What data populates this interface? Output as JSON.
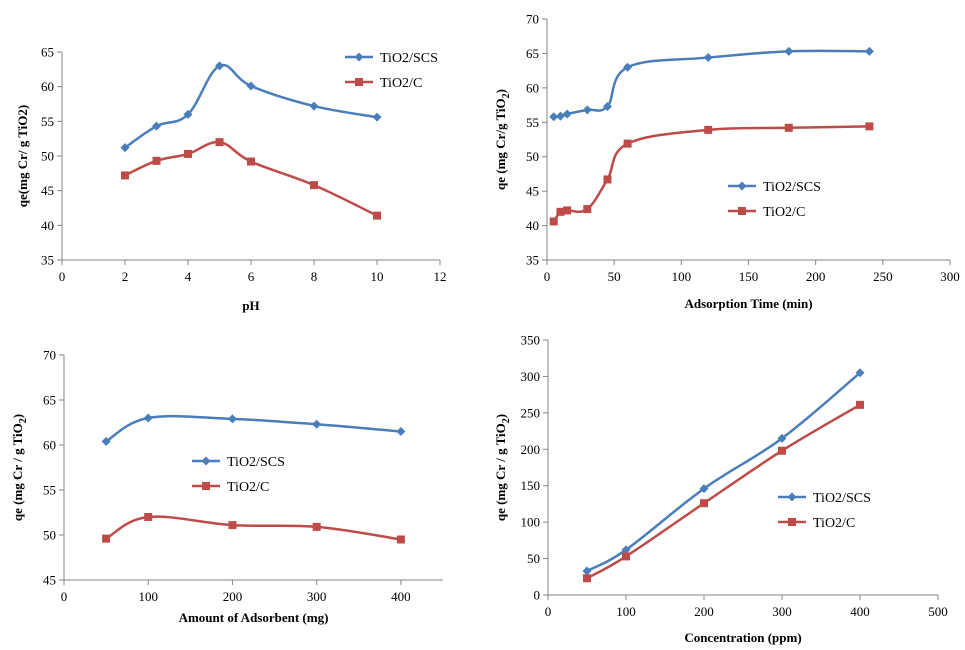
{
  "colors": {
    "TiO2/SCS": "#4a7ebb",
    "TiO2/C": "#be4b48",
    "axis": "#868686"
  },
  "chart_data": [
    {
      "id": "ph",
      "type": "line",
      "xlabel": "pH",
      "ylabel": "qe(mg Cr/ g TiO2)",
      "xlim": [
        0,
        12
      ],
      "ylim": [
        35,
        65
      ],
      "xticks": [
        0,
        2,
        4,
        6,
        8,
        10,
        12
      ],
      "yticks": [
        35,
        40,
        45,
        50,
        55,
        60,
        65
      ],
      "grid": false,
      "legend_position": "top-right",
      "series": [
        {
          "name": "TiO2/SCS",
          "marker": "diamond",
          "x": [
            2,
            3,
            4,
            5,
            6,
            8,
            10
          ],
          "y": [
            51.2,
            54.3,
            56.0,
            63.0,
            60.1,
            57.2,
            55.6
          ]
        },
        {
          "name": "TiO2/C",
          "marker": "square",
          "x": [
            2,
            3,
            4,
            5,
            6,
            8,
            10
          ],
          "y": [
            47.2,
            49.3,
            50.3,
            52.0,
            49.2,
            45.8,
            41.4
          ]
        }
      ]
    },
    {
      "id": "time",
      "type": "line",
      "xlabel": "Adsorption Time (min)",
      "ylabel": "qe (mg Cr/g TiO",
      "ylabel_sub": "2",
      "ylabel_end": ")",
      "xlim": [
        0,
        300
      ],
      "ylim": [
        35,
        70
      ],
      "xticks": [
        0,
        50,
        100,
        150,
        200,
        250,
        300
      ],
      "yticks": [
        35,
        40,
        45,
        50,
        55,
        60,
        65,
        70
      ],
      "grid": false,
      "legend_position": "middle-right",
      "series": [
        {
          "name": "TiO2/SCS",
          "marker": "diamond",
          "x": [
            5,
            10,
            15,
            30,
            45,
            60,
            120,
            180,
            240
          ],
          "y": [
            55.8,
            55.9,
            56.2,
            56.8,
            57.3,
            63.0,
            64.4,
            65.3,
            65.3
          ]
        },
        {
          "name": "TiO2/C",
          "marker": "square",
          "x": [
            5,
            10,
            15,
            30,
            45,
            60,
            120,
            180,
            240
          ],
          "y": [
            40.6,
            42.0,
            42.2,
            42.4,
            46.7,
            51.9,
            53.9,
            54.2,
            54.4
          ]
        }
      ]
    },
    {
      "id": "amount",
      "type": "line",
      "xlabel": "Amount of Adsorbent (mg)",
      "ylabel": "qe (mg Cr / g TiO",
      "ylabel_sub": "2",
      "ylabel_end": ")",
      "xlim": [
        0,
        450
      ],
      "ylim": [
        45,
        70
      ],
      "xticks": [
        0,
        100,
        200,
        300,
        400
      ],
      "yticks": [
        45,
        50,
        55,
        60,
        65,
        70
      ],
      "grid": false,
      "legend_position": "center",
      "series": [
        {
          "name": "TiO2/SCS",
          "marker": "diamond",
          "x": [
            50,
            100,
            200,
            300,
            400
          ],
          "y": [
            60.4,
            63.0,
            62.9,
            62.3,
            61.5
          ]
        },
        {
          "name": "TiO2/C",
          "marker": "square",
          "x": [
            50,
            100,
            200,
            300,
            400
          ],
          "y": [
            49.6,
            52.0,
            51.1,
            50.9,
            49.5
          ]
        }
      ]
    },
    {
      "id": "conc",
      "type": "line",
      "xlabel": "Concentration (ppm)",
      "ylabel": "qe (mg Cr / g TiO",
      "ylabel_sub": "2",
      "ylabel_end": ")",
      "xlim": [
        0,
        500
      ],
      "ylim": [
        0,
        350
      ],
      "xticks": [
        0,
        100,
        200,
        300,
        400,
        500
      ],
      "yticks": [
        0,
        50,
        100,
        150,
        200,
        250,
        300,
        350
      ],
      "grid": false,
      "legend_position": "middle-right",
      "series": [
        {
          "name": "TiO2/SCS",
          "marker": "diamond",
          "x": [
            50,
            100,
            200,
            300,
            400
          ],
          "y": [
            33,
            62,
            146,
            215,
            305
          ]
        },
        {
          "name": "TiO2/C",
          "marker": "square",
          "x": [
            50,
            100,
            200,
            300,
            400
          ],
          "y": [
            23,
            53,
            126,
            198,
            261
          ]
        }
      ]
    }
  ]
}
